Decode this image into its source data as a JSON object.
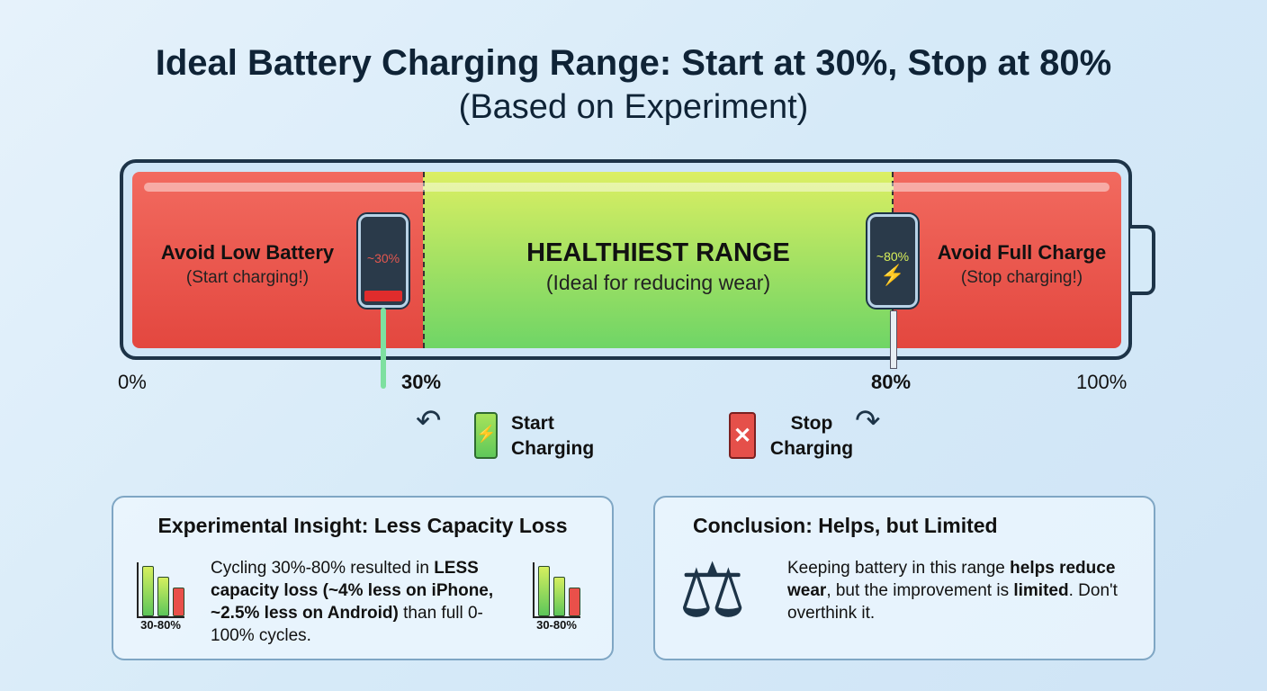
{
  "title": "Ideal Battery Charging Range: Start at 30%, Stop at 80%",
  "subtitle": "(Based on Experiment)",
  "zones": {
    "low": {
      "title": "Avoid Low Battery",
      "subtitle": "(Start charging!)",
      "phone_label": "~30%"
    },
    "mid": {
      "title": "HEALTHIEST RANGE",
      "subtitle": "(Ideal for reducing wear)"
    },
    "high": {
      "title": "Avoid Full Charge",
      "subtitle": "(Stop charging!)",
      "phone_label": "~80%"
    }
  },
  "ticks": [
    "0%",
    "30%",
    "80%",
    "100%"
  ],
  "actions": {
    "start_line1": "Start",
    "start_line2": "Charging",
    "stop_line1": "Stop",
    "stop_line2": "Charging"
  },
  "insight": {
    "title": "Experimental Insight: Less Capacity Loss",
    "text1": "Cycling 30%-80% resulted in ",
    "bold1": "LESS capacity loss (~4% less on iPhone, ~2.5% less on Android)",
    "text2": " than full 0-100% cycles.",
    "chart_label_left": "30-80%",
    "chart_label_right": "30-80%"
  },
  "conclusion": {
    "title": "Conclusion: Helps, but Limited",
    "text1": "Keeping battery in this range ",
    "bold1": "helps reduce wear",
    "text2": ", but the improvement is ",
    "bold2": "limited",
    "text3": ". Don't overthink it."
  },
  "colors": {
    "red": "#e3473f",
    "green": "#7dd866",
    "yellow": "#dcef63",
    "navy": "#1d3448"
  }
}
